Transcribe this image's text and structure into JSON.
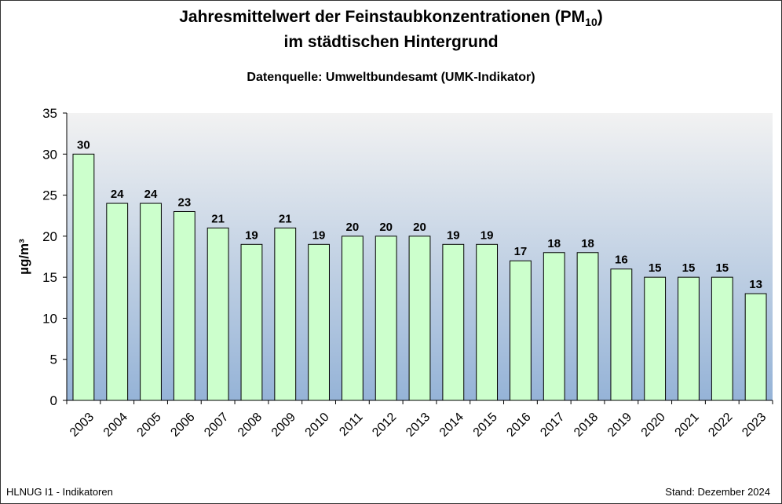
{
  "chart_data": {
    "type": "bar",
    "title_line1": "Jahresmittelwert der Feinstaubkonzentrationen (PM",
    "title_sub": "10",
    "title_close": ")",
    "title_line2": "im städtischen Hintergrund",
    "subtitle": "Datenquelle: Umweltbundesamt (UMK-Indikator)",
    "ylabel": "µg/m³",
    "xlabel": "",
    "ylim": [
      0,
      35
    ],
    "yticks": [
      0,
      5,
      10,
      15,
      20,
      25,
      30,
      35
    ],
    "categories": [
      "2003",
      "2004",
      "2005",
      "2006",
      "2007",
      "2008",
      "2009",
      "2010",
      "2011",
      "2012",
      "2013",
      "2014",
      "2015",
      "2016",
      "2017",
      "2018",
      "2019",
      "2020",
      "2021",
      "2022",
      "2023"
    ],
    "values": [
      30,
      24,
      24,
      23,
      21,
      19,
      21,
      19,
      20,
      20,
      20,
      19,
      19,
      17,
      18,
      18,
      16,
      15,
      15,
      15,
      13
    ],
    "data_labels": true,
    "grid": false,
    "legend": "none",
    "colors": {
      "bar": "#ccffcc",
      "bg_top": "#f2f2f2",
      "bg_bottom": "#95b3d7"
    }
  },
  "footer": {
    "left": "HLNUG I1 - Indikatoren",
    "right": "Stand: Dezember 2024"
  }
}
